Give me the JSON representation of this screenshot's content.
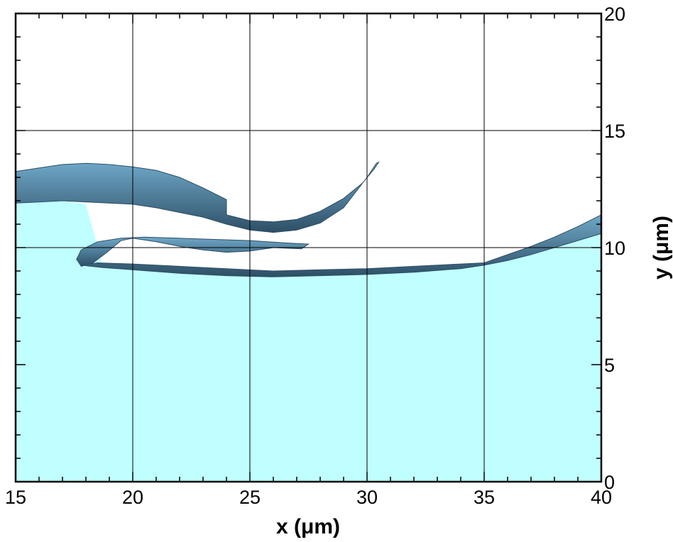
{
  "chart_data": {
    "type": "area",
    "title": "",
    "xlabel": "x (μm)",
    "ylabel": "y (μm)",
    "xlim": [
      15,
      40
    ],
    "ylim": [
      0,
      20
    ],
    "x_ticks": [
      15,
      20,
      25,
      30,
      35,
      40
    ],
    "y_ticks": [
      0,
      5,
      10,
      15,
      20
    ],
    "x_tick_labels": [
      "15",
      "20",
      "25",
      "30",
      "35",
      "40"
    ],
    "y_tick_labels": [
      "0",
      "5",
      "10",
      "15",
      "20"
    ],
    "y_axis_side": "right",
    "grid": true,
    "grid_lines_x": [
      20,
      25,
      30,
      35
    ],
    "grid_lines_y": [
      10,
      15
    ],
    "colors": {
      "liquid_fill": "#c0ffff",
      "surface_dark": "#2e4f66",
      "surface_mid": "#4a7b98",
      "surface_light": "#6fa8c8",
      "grid": "#000000"
    },
    "series": [
      {
        "kind": "region",
        "fill": "#c0ffff",
        "x": [
          15,
          16,
          17,
          18,
          18.7,
          19.5,
          21,
          23,
          25,
          27,
          29,
          31,
          33,
          35,
          36,
          37,
          38,
          39,
          40,
          40,
          15
        ],
        "y": [
          11.9,
          12.0,
          12.0,
          11.85,
          9.3,
          9.15,
          9.0,
          8.85,
          8.8,
          8.8,
          8.85,
          8.95,
          9.1,
          9.25,
          9.45,
          9.7,
          10.0,
          10.3,
          10.6,
          0,
          0
        ]
      },
      {
        "kind": "surface",
        "fill": "#4a7b98",
        "x": [
          15,
          16,
          17,
          18,
          19,
          20,
          21,
          22,
          23,
          23.5,
          24,
          24,
          25,
          26,
          27,
          28,
          29,
          29.8,
          30.3,
          30.5,
          30.4,
          30,
          29,
          28,
          27,
          26,
          25,
          24,
          23,
          22,
          21,
          20,
          19,
          18,
          17,
          16,
          15
        ],
        "y": [
          13.25,
          13.4,
          13.55,
          13.6,
          13.55,
          13.45,
          13.3,
          13.0,
          12.55,
          12.3,
          12.05,
          11.4,
          11.15,
          11.1,
          11.2,
          11.55,
          12.1,
          12.75,
          13.35,
          13.65,
          13.6,
          13.0,
          11.7,
          11.05,
          10.75,
          10.65,
          10.75,
          11.0,
          11.3,
          11.5,
          11.7,
          11.85,
          11.9,
          11.95,
          12.0,
          11.95,
          11.9
        ]
      },
      {
        "kind": "surface",
        "fill": "#3f6d88",
        "x": [
          17.6,
          17.8,
          18.5,
          19.5,
          20.5,
          22,
          23.5,
          25,
          26.5,
          27.5,
          27.2,
          26,
          25,
          24,
          23,
          22,
          21,
          20,
          19.5,
          18.9,
          18.3,
          17.8,
          17.6
        ],
        "y": [
          9.5,
          9.9,
          10.25,
          10.4,
          10.45,
          10.4,
          10.35,
          10.3,
          10.2,
          10.15,
          9.95,
          10.0,
          9.85,
          9.8,
          9.9,
          10.05,
          10.25,
          10.4,
          10.3,
          9.8,
          9.35,
          9.2,
          9.5
        ]
      },
      {
        "kind": "surface",
        "fill": "#426f8c",
        "x": [
          17.8,
          18.5,
          20,
          22,
          24,
          26,
          28,
          30,
          32,
          34,
          35,
          36,
          37,
          38,
          39,
          40,
          40,
          39,
          38,
          37,
          36,
          35,
          34,
          32,
          30,
          28,
          26,
          24,
          22,
          20,
          18.7,
          17.8
        ],
        "y": [
          9.25,
          9.35,
          9.3,
          9.2,
          9.1,
          9.0,
          9.05,
          9.1,
          9.2,
          9.3,
          9.35,
          9.7,
          10.05,
          10.45,
          10.9,
          11.4,
          10.6,
          10.3,
          10.0,
          9.7,
          9.45,
          9.25,
          9.1,
          8.95,
          8.85,
          8.8,
          8.75,
          8.8,
          8.9,
          9.05,
          9.15,
          9.25
        ]
      }
    ]
  }
}
